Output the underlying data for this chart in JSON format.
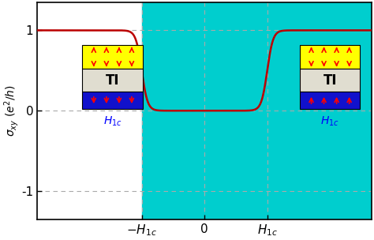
{
  "ylabel": "$\\sigma_{xy}$ ($e^2/h$)",
  "xlim": [
    -2.0,
    2.0
  ],
  "ylim": [
    -1.35,
    1.35
  ],
  "yticks": [
    -1,
    0,
    1
  ],
  "xtick_labels": [
    "$-H_{1c}$",
    "0",
    "$H_{1c}$"
  ],
  "xtick_positions": [
    -0.75,
    0,
    0.75
  ],
  "H1c": 0.75,
  "cyan_color": "#00CECE",
  "white_color": "#FFFFFF",
  "line_color": "#BB0000",
  "dashed_color": "#AAAAAA"
}
